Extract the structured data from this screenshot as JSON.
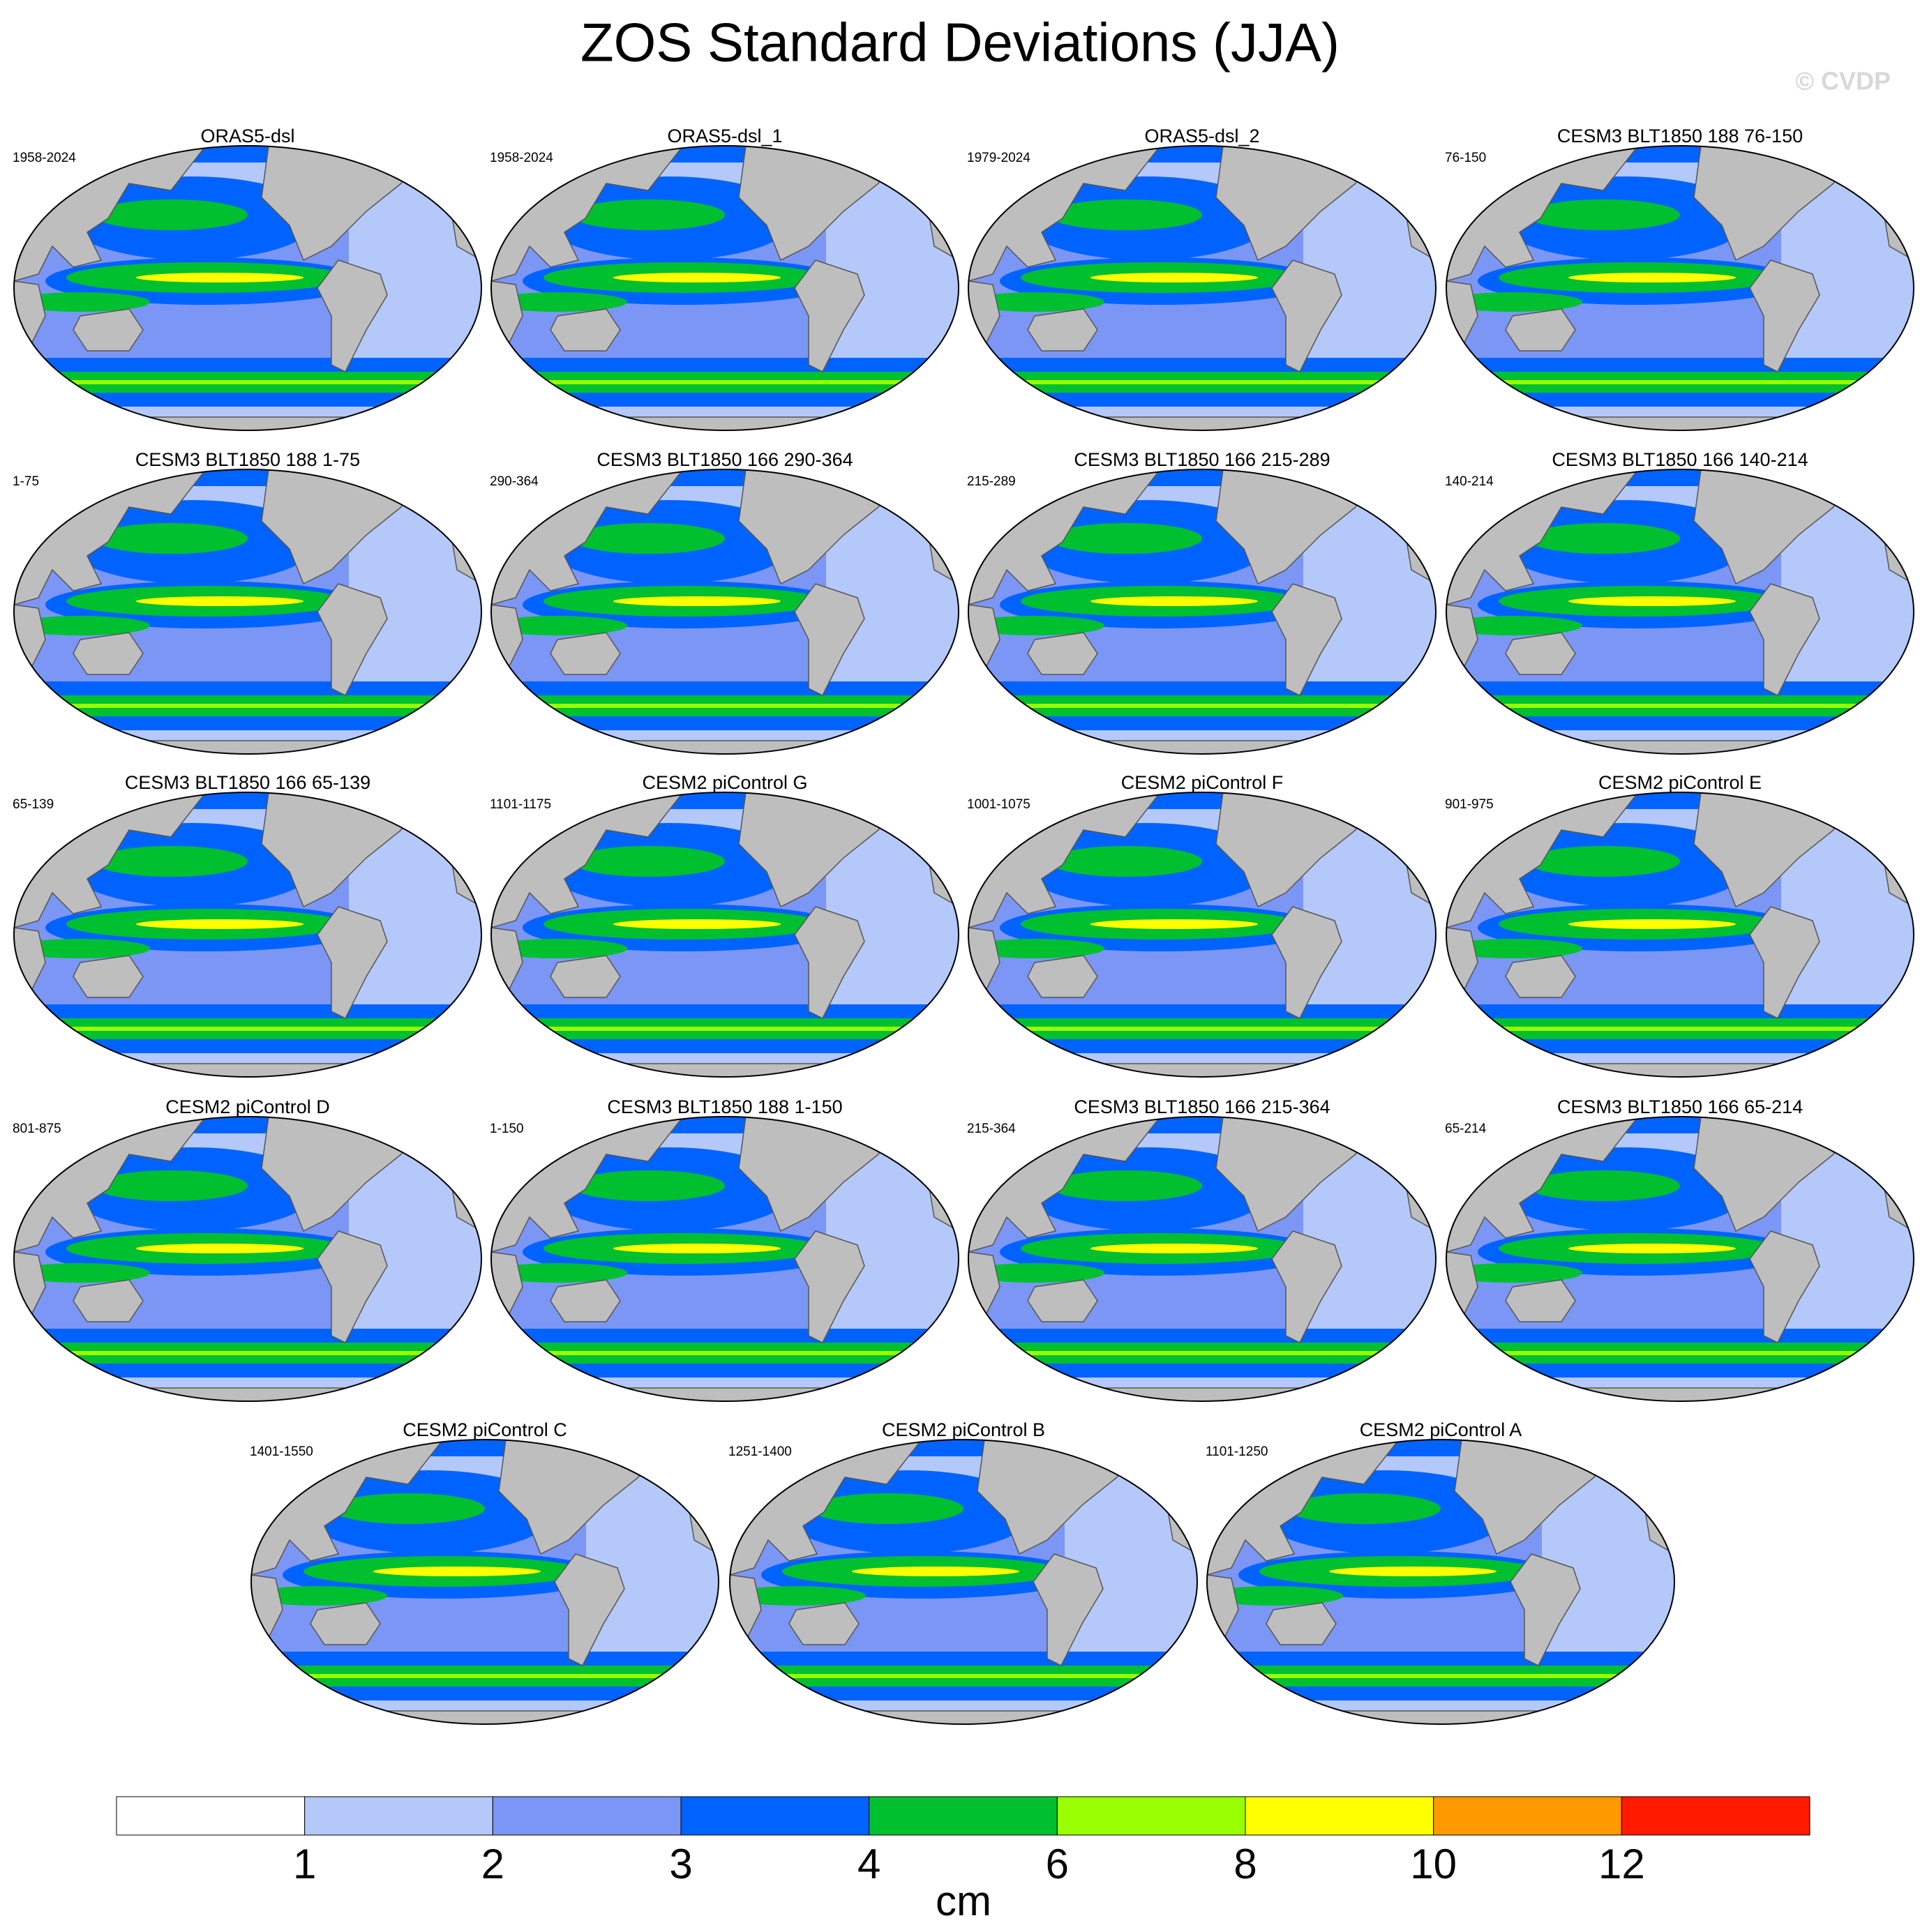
{
  "title": "ZOS Standard Deviations (JJA)",
  "watermark": "© CVDP",
  "panels": [
    {
      "title": "ORAS5-dsl",
      "period": "1958-2024"
    },
    {
      "title": "ORAS5-dsl_1",
      "period": "1958-2024"
    },
    {
      "title": "ORAS5-dsl_2",
      "period": "1979-2024"
    },
    {
      "title": "CESM3 BLT1850 188 76-150",
      "period": "76-150"
    },
    {
      "title": "CESM3 BLT1850 188 1-75",
      "period": "1-75"
    },
    {
      "title": "CESM3 BLT1850 166 290-364",
      "period": "290-364"
    },
    {
      "title": "CESM3 BLT1850 166 215-289",
      "period": "215-289"
    },
    {
      "title": "CESM3 BLT1850 166 140-214",
      "period": "140-214"
    },
    {
      "title": "CESM3 BLT1850 166 65-139",
      "period": "65-139"
    },
    {
      "title": "CESM2 piControl G",
      "period": "1101-1175"
    },
    {
      "title": "CESM2 piControl F",
      "period": "1001-1075"
    },
    {
      "title": "CESM2 piControl E",
      "period": "901-975"
    },
    {
      "title": "CESM2 piControl D",
      "period": "801-875"
    },
    {
      "title": "CESM3 BLT1850 188 1-150",
      "period": "1-150"
    },
    {
      "title": "CESM3 BLT1850 166 215-364",
      "period": "215-364"
    },
    {
      "title": "CESM3 BLT1850 166 65-214",
      "period": "65-214"
    },
    {
      "title": "CESM2 piControl C",
      "period": "1401-1550"
    },
    {
      "title": "CESM2 piControl B",
      "period": "1251-1400"
    },
    {
      "title": "CESM2 piControl A",
      "period": "1101-1250"
    }
  ],
  "colorbar": {
    "levels": [
      1,
      2,
      3,
      4,
      6,
      8,
      10,
      12
    ],
    "colors": [
      "#ffffff",
      "#b4c8fa",
      "#7b96f5",
      "#0063ff",
      "#00c030",
      "#99ff00",
      "#ffff00",
      "#ff9900",
      "#ff1a00"
    ],
    "unit": "cm"
  }
}
